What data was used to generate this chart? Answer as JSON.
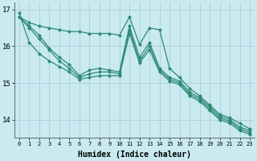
{
  "x": [
    0,
    1,
    2,
    3,
    4,
    5,
    6,
    7,
    8,
    9,
    10,
    11,
    12,
    13,
    14,
    15,
    16,
    17,
    18,
    19,
    20,
    21,
    22,
    23
  ],
  "line1": [
    16.8,
    16.65,
    16.55,
    16.5,
    16.45,
    16.4,
    16.4,
    16.35,
    16.35,
    16.35,
    16.3,
    16.8,
    16.05,
    16.5,
    16.45,
    15.4,
    15.15,
    14.85,
    14.65,
    14.4,
    14.15,
    14.05,
    13.9,
    13.75
  ],
  "line2": [
    16.8,
    16.55,
    16.3,
    15.95,
    15.7,
    15.5,
    15.2,
    15.35,
    15.4,
    15.35,
    15.3,
    16.55,
    15.7,
    16.1,
    15.4,
    15.15,
    15.05,
    14.75,
    14.6,
    14.35,
    14.1,
    14.0,
    13.8,
    13.7
  ],
  "line3": [
    16.8,
    16.5,
    16.2,
    15.9,
    15.6,
    15.4,
    15.15,
    15.25,
    15.3,
    15.3,
    15.25,
    16.45,
    15.6,
    16.0,
    15.35,
    15.1,
    15.0,
    14.7,
    14.55,
    14.3,
    14.05,
    13.95,
    13.75,
    13.65
  ],
  "line4": [
    16.9,
    16.1,
    15.8,
    15.6,
    15.45,
    15.3,
    15.1,
    15.15,
    15.2,
    15.2,
    15.2,
    16.35,
    15.55,
    15.9,
    15.3,
    15.05,
    14.95,
    14.65,
    14.5,
    14.25,
    14.0,
    13.9,
    13.7,
    13.6
  ],
  "line_color": "#2e8b74",
  "bg_color": "#c8eaf0",
  "grid_color": "#b0cdd8",
  "xlabel": "Humidex (Indice chaleur)",
  "ylim_min": 13.5,
  "ylim_max": 17.2,
  "xlim_min": -0.5,
  "xlim_max": 23.5,
  "yticks": [
    14,
    15,
    16,
    17
  ],
  "xtick_labels": [
    "0",
    "1",
    "2",
    "3",
    "4",
    "5",
    "6",
    "7",
    "8",
    "9",
    "10",
    "11",
    "12",
    "13",
    "14",
    "15",
    "16",
    "17",
    "18",
    "19",
    "20",
    "21",
    "22",
    "23"
  ]
}
